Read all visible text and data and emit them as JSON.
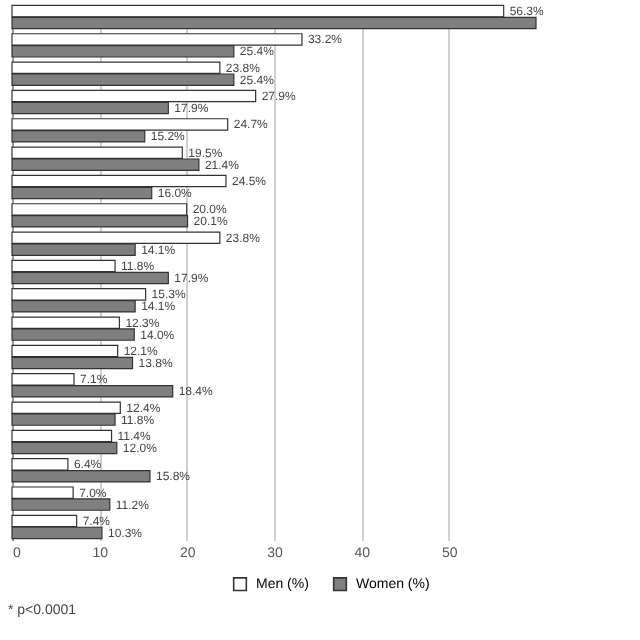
{
  "chart_data": {
    "type": "bar",
    "orientation": "horizontal",
    "categories": [
      null,
      null,
      null,
      null,
      null,
      null,
      null,
      null,
      null,
      null,
      null,
      null,
      null,
      null,
      null,
      null,
      null,
      null,
      null
    ],
    "series": [
      {
        "name": "Men (%)",
        "color": "#ffffff",
        "values": [
          56.3,
          33.2,
          23.8,
          27.9,
          24.7,
          19.5,
          24.5,
          20.0,
          23.8,
          11.8,
          15.3,
          12.3,
          12.1,
          7.1,
          12.4,
          11.4,
          6.4,
          7.0,
          7.4
        ],
        "value_labels": [
          "56.3%",
          "33.2%",
          "23.8%",
          "27.9%",
          "24.7%",
          "19.5%",
          "24.5%",
          "20.0%",
          "23.8%",
          "11.8%",
          "15.3%",
          "12.3%",
          "12.1%",
          "7.1%",
          "12.4%",
          "11.4%",
          "6.4%",
          "7.0%",
          "7.4%"
        ]
      },
      {
        "name": "Women (%)",
        "color": "#7f7f7f",
        "values": [
          60,
          25.4,
          25.4,
          17.9,
          15.2,
          21.4,
          16.0,
          20.1,
          14.1,
          17.9,
          14.1,
          14.0,
          13.8,
          18.4,
          11.8,
          12.0,
          15.8,
          11.2,
          10.3
        ],
        "value_labels": [
          null,
          "25.4%",
          "25.4%",
          "17.9%",
          "15.2%",
          "21.4%",
          "16.0%",
          "20.1%",
          "14.1%",
          "17.9%",
          "14.1%",
          "14.0%",
          "13.8%",
          "18.4%",
          "11.8%",
          "12.0%",
          "15.8%",
          "11.2%",
          "10.3%"
        ]
      }
    ],
    "xlim": [
      0,
      60
    ],
    "xticks": [
      0,
      10,
      20,
      30,
      40,
      50
    ],
    "grid": "x",
    "legend": "bottom",
    "annotations": [
      "* p<0.0001"
    ]
  }
}
